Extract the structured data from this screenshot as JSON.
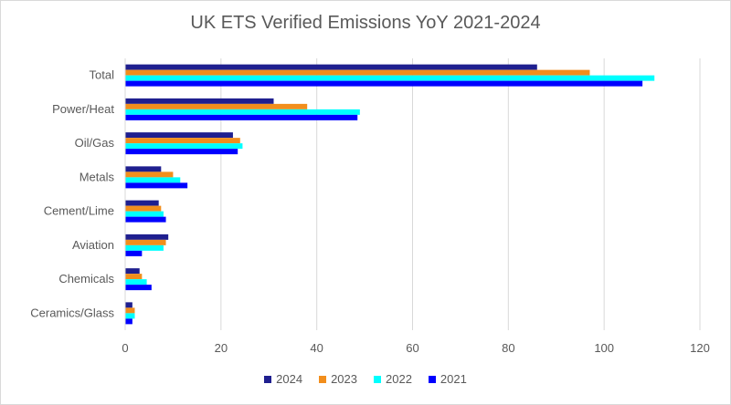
{
  "chart_data": {
    "type": "bar",
    "orientation": "horizontal",
    "title": "UK ETS Verified Emissions YoY 2021-2024",
    "categories": [
      "Total",
      "Power/Heat",
      "Oil/Gas",
      "Metals",
      "Cement/Lime",
      "Aviation",
      "Chemicals",
      "Ceramics/Glass"
    ],
    "series": [
      {
        "name": "2024",
        "color": "#1f1f8f",
        "values": [
          86,
          31,
          22.5,
          7.5,
          7,
          9,
          3,
          1.5
        ]
      },
      {
        "name": "2023",
        "color": "#f28e1c",
        "values": [
          97,
          38,
          24,
          10,
          7.5,
          8.5,
          3.5,
          2
        ]
      },
      {
        "name": "2022",
        "color": "#00ffff",
        "values": [
          110.5,
          49,
          24.5,
          11.5,
          8,
          8,
          4.5,
          2
        ]
      },
      {
        "name": "2021",
        "color": "#0000ff",
        "values": [
          108,
          48.5,
          23.5,
          13,
          8.5,
          3.5,
          5.5,
          1.5
        ]
      }
    ],
    "xlim": [
      0,
      120
    ],
    "xticks": [
      0,
      20,
      40,
      60,
      80,
      100,
      120
    ],
    "grid": true,
    "legend_position": "bottom"
  }
}
